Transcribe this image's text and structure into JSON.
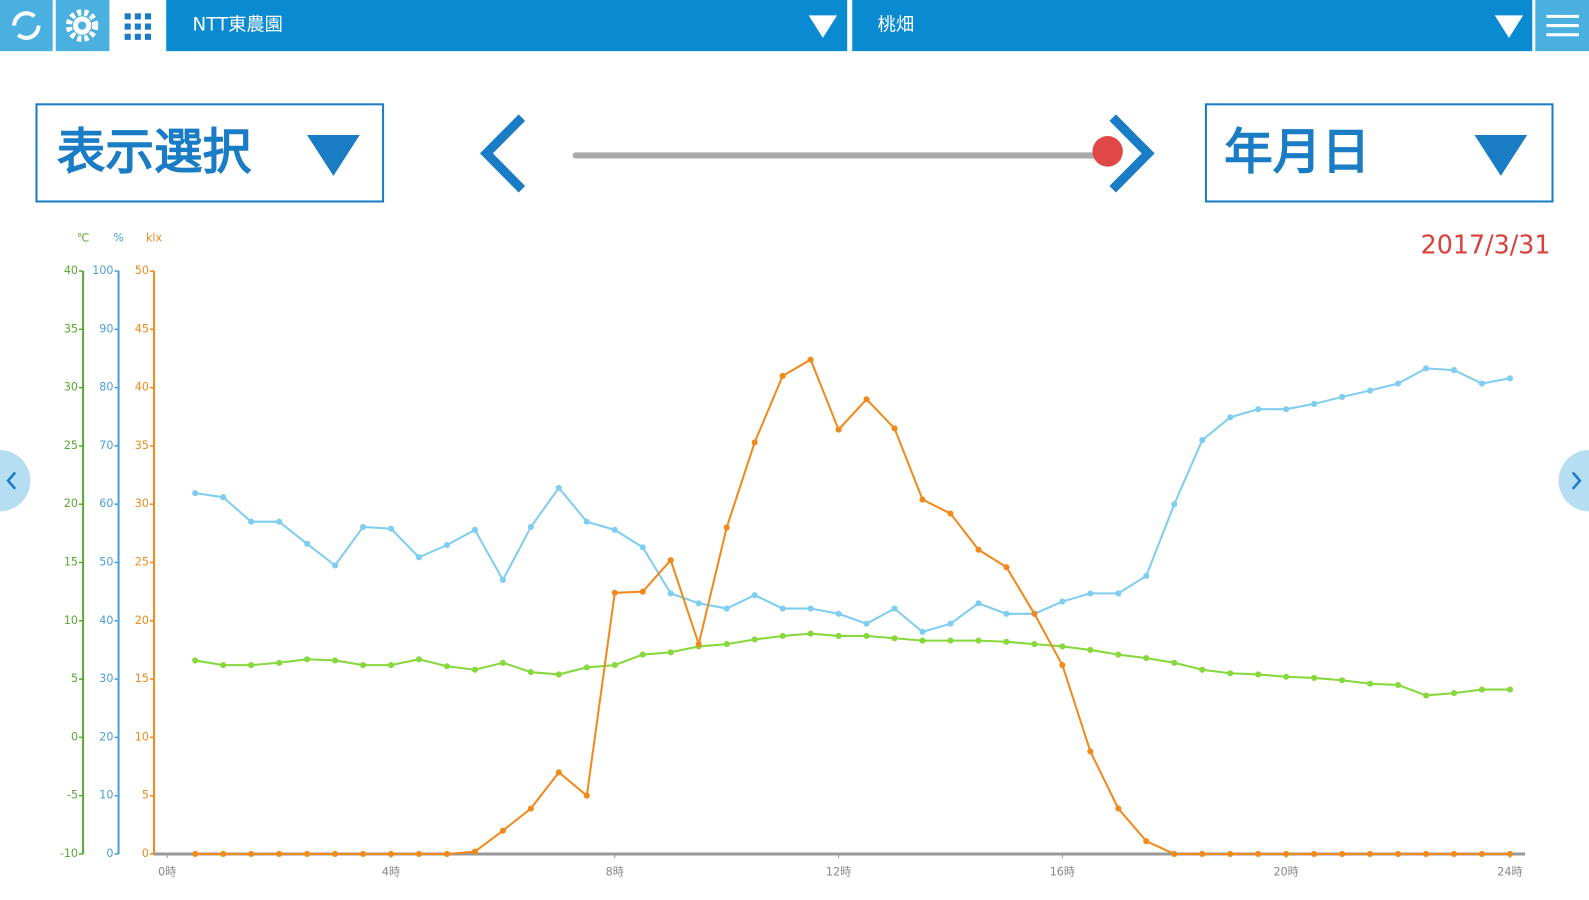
{
  "toolbar": {
    "farm": "NTT東農園",
    "field": "桃畑"
  },
  "controls": {
    "display_select": "表示選択",
    "period": "年月日",
    "date": "2017/3/31"
  },
  "chart_data": {
    "type": "line",
    "axis_units": {
      "y": "℃",
      "y2": "%",
      "y3": "klx"
    },
    "x": [
      0.5,
      1,
      1.5,
      2,
      2.5,
      3,
      3.5,
      4,
      4.5,
      5,
      5.5,
      6,
      6.5,
      7,
      7.5,
      8,
      8.5,
      9,
      9.5,
      10,
      10.5,
      11,
      11.5,
      12,
      12.5,
      13,
      13.5,
      14,
      14.5,
      15,
      15.5,
      16,
      16.5,
      17,
      17.5,
      18,
      18.5,
      19,
      19.5,
      20,
      20.5,
      21,
      21.5,
      22,
      22.5,
      23,
      23.5,
      24
    ],
    "xlim": [
      0,
      24
    ],
    "xticks": [
      {
        "value": 0,
        "label": "0時"
      },
      {
        "value": 4,
        "label": "4時"
      },
      {
        "value": 8,
        "label": "8時"
      },
      {
        "value": 12,
        "label": "12時"
      },
      {
        "value": 16,
        "label": "16時"
      },
      {
        "value": 20,
        "label": "20時"
      },
      {
        "value": 24,
        "label": "24時"
      }
    ],
    "ylim": [
      -10,
      40
    ],
    "yticks": [
      -10,
      -5,
      0,
      5,
      10,
      15,
      20,
      25,
      30,
      35,
      40
    ],
    "ycolor": "#5aa832",
    "y2lim": [
      0,
      100
    ],
    "y2ticks": [
      0,
      10,
      20,
      30,
      40,
      50,
      60,
      70,
      80,
      90,
      100
    ],
    "y2color": "#4a9fd8",
    "y3lim": [
      0,
      50
    ],
    "y3ticks": [
      0,
      5,
      10,
      15,
      20,
      25,
      30,
      35,
      40,
      45,
      50
    ],
    "y3color": "#f08a1c",
    "series": [
      {
        "axis": "y",
        "color": "#86d83c",
        "values": [
          6.6,
          6.2,
          6.2,
          6.4,
          6.7,
          6.6,
          6.2,
          6.2,
          6.7,
          6.1,
          5.8,
          6.4,
          5.6,
          5.4,
          6,
          6.2,
          7.1,
          7.3,
          7.8,
          8,
          8.4,
          8.7,
          8.9,
          8.7,
          8.7,
          8.5,
          8.3,
          8.3,
          8.3,
          8.2,
          8,
          7.8,
          7.5,
          7.1,
          6.8,
          6.4,
          5.8,
          5.5,
          5.4,
          5.2,
          5.1,
          4.9,
          4.6,
          4.5,
          3.6,
          3.8,
          4.1,
          4.1
        ]
      },
      {
        "axis": "y2",
        "color": "#7fcdf0",
        "values": [
          61.9,
          61.2,
          57,
          57,
          53.2,
          49.5,
          56.1,
          55.8,
          50.9,
          53,
          55.6,
          47,
          56.1,
          62.8,
          57,
          55.6,
          52.6,
          44.7,
          43,
          42.1,
          44.4,
          42.1,
          42.1,
          41.2,
          39.5,
          42.1,
          38.1,
          39.5,
          43,
          41.2,
          41.2,
          43.3,
          44.7,
          44.7,
          47.7,
          60,
          71,
          74.9,
          76.3,
          76.3,
          77.2,
          78.4,
          79.5,
          80.7,
          83.3,
          83,
          80.7,
          81.6
        ]
      },
      {
        "axis": "y3",
        "color": "#f08a1c",
        "values": [
          0,
          0,
          0,
          0,
          0,
          0,
          0,
          0,
          0,
          0,
          0.2,
          2,
          3.9,
          7,
          5,
          22.4,
          22.5,
          25.2,
          18,
          28,
          35.3,
          41,
          42.4,
          36.4,
          39,
          36.5,
          30.4,
          29.2,
          26.1,
          24.6,
          20.6,
          16.2,
          8.8,
          3.9,
          1.1,
          0,
          0,
          0,
          0,
          0,
          0,
          0,
          0,
          0,
          0,
          0,
          0,
          0
        ]
      }
    ]
  }
}
